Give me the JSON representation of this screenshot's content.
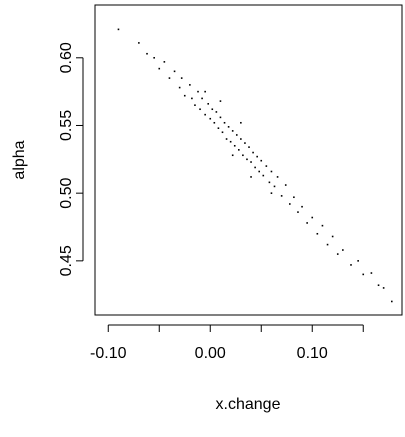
{
  "chart_data": {
    "type": "scatter",
    "xlabel": "x.change",
    "ylabel": "alpha",
    "color": "#000000",
    "xlim": [
      -0.113,
      0.188
    ],
    "ylim": [
      0.41,
      0.639
    ],
    "xticks": [
      {
        "value": -0.1,
        "label": "-0.10"
      },
      {
        "value": 0,
        "label": "0.00"
      },
      {
        "value": 0.1,
        "label": "0.10"
      }
    ],
    "xminor_ticks": [
      -0.05,
      0.05,
      0.15
    ],
    "yticks": [
      {
        "value": 0.45,
        "label": "0.45"
      },
      {
        "value": 0.5,
        "label": "0.50"
      },
      {
        "value": 0.55,
        "label": "0.55"
      },
      {
        "value": 0.6,
        "label": "0.60"
      }
    ],
    "x": [
      -0.09,
      -0.07,
      -0.062,
      -0.055,
      -0.05,
      -0.045,
      -0.04,
      -0.035,
      -0.03,
      -0.028,
      -0.025,
      -0.02,
      -0.018,
      -0.015,
      -0.012,
      -0.01,
      -0.008,
      -0.005,
      -0.002,
      0.0,
      0.002,
      0.004,
      0.006,
      0.008,
      0.01,
      0.012,
      0.014,
      0.016,
      0.018,
      0.02,
      0.022,
      0.024,
      0.026,
      0.028,
      0.03,
      0.032,
      0.034,
      0.036,
      0.038,
      0.04,
      0.042,
      0.044,
      0.046,
      0.048,
      0.05,
      0.052,
      0.055,
      0.058,
      0.06,
      0.063,
      0.066,
      0.07,
      0.074,
      0.078,
      0.082,
      0.086,
      0.09,
      0.095,
      0.1,
      0.105,
      0.11,
      0.115,
      0.12,
      0.125,
      0.13,
      0.138,
      0.145,
      0.15,
      0.158,
      0.165,
      0.17,
      0.178,
      0.022,
      0.01,
      0.04,
      -0.005,
      0.06,
      0.03
    ],
    "values": [
      0.621,
      0.611,
      0.603,
      0.6,
      0.592,
      0.597,
      0.585,
      0.59,
      0.578,
      0.585,
      0.572,
      0.58,
      0.57,
      0.565,
      0.575,
      0.562,
      0.57,
      0.558,
      0.566,
      0.555,
      0.562,
      0.552,
      0.56,
      0.548,
      0.556,
      0.545,
      0.552,
      0.54,
      0.549,
      0.538,
      0.546,
      0.535,
      0.543,
      0.532,
      0.54,
      0.528,
      0.537,
      0.525,
      0.534,
      0.523,
      0.53,
      0.519,
      0.527,
      0.516,
      0.524,
      0.513,
      0.52,
      0.508,
      0.516,
      0.505,
      0.512,
      0.498,
      0.506,
      0.492,
      0.497,
      0.486,
      0.49,
      0.478,
      0.482,
      0.47,
      0.476,
      0.462,
      0.468,
      0.455,
      0.458,
      0.447,
      0.45,
      0.44,
      0.441,
      0.432,
      0.43,
      0.42,
      0.528,
      0.568,
      0.512,
      0.575,
      0.5,
      0.552
    ]
  }
}
